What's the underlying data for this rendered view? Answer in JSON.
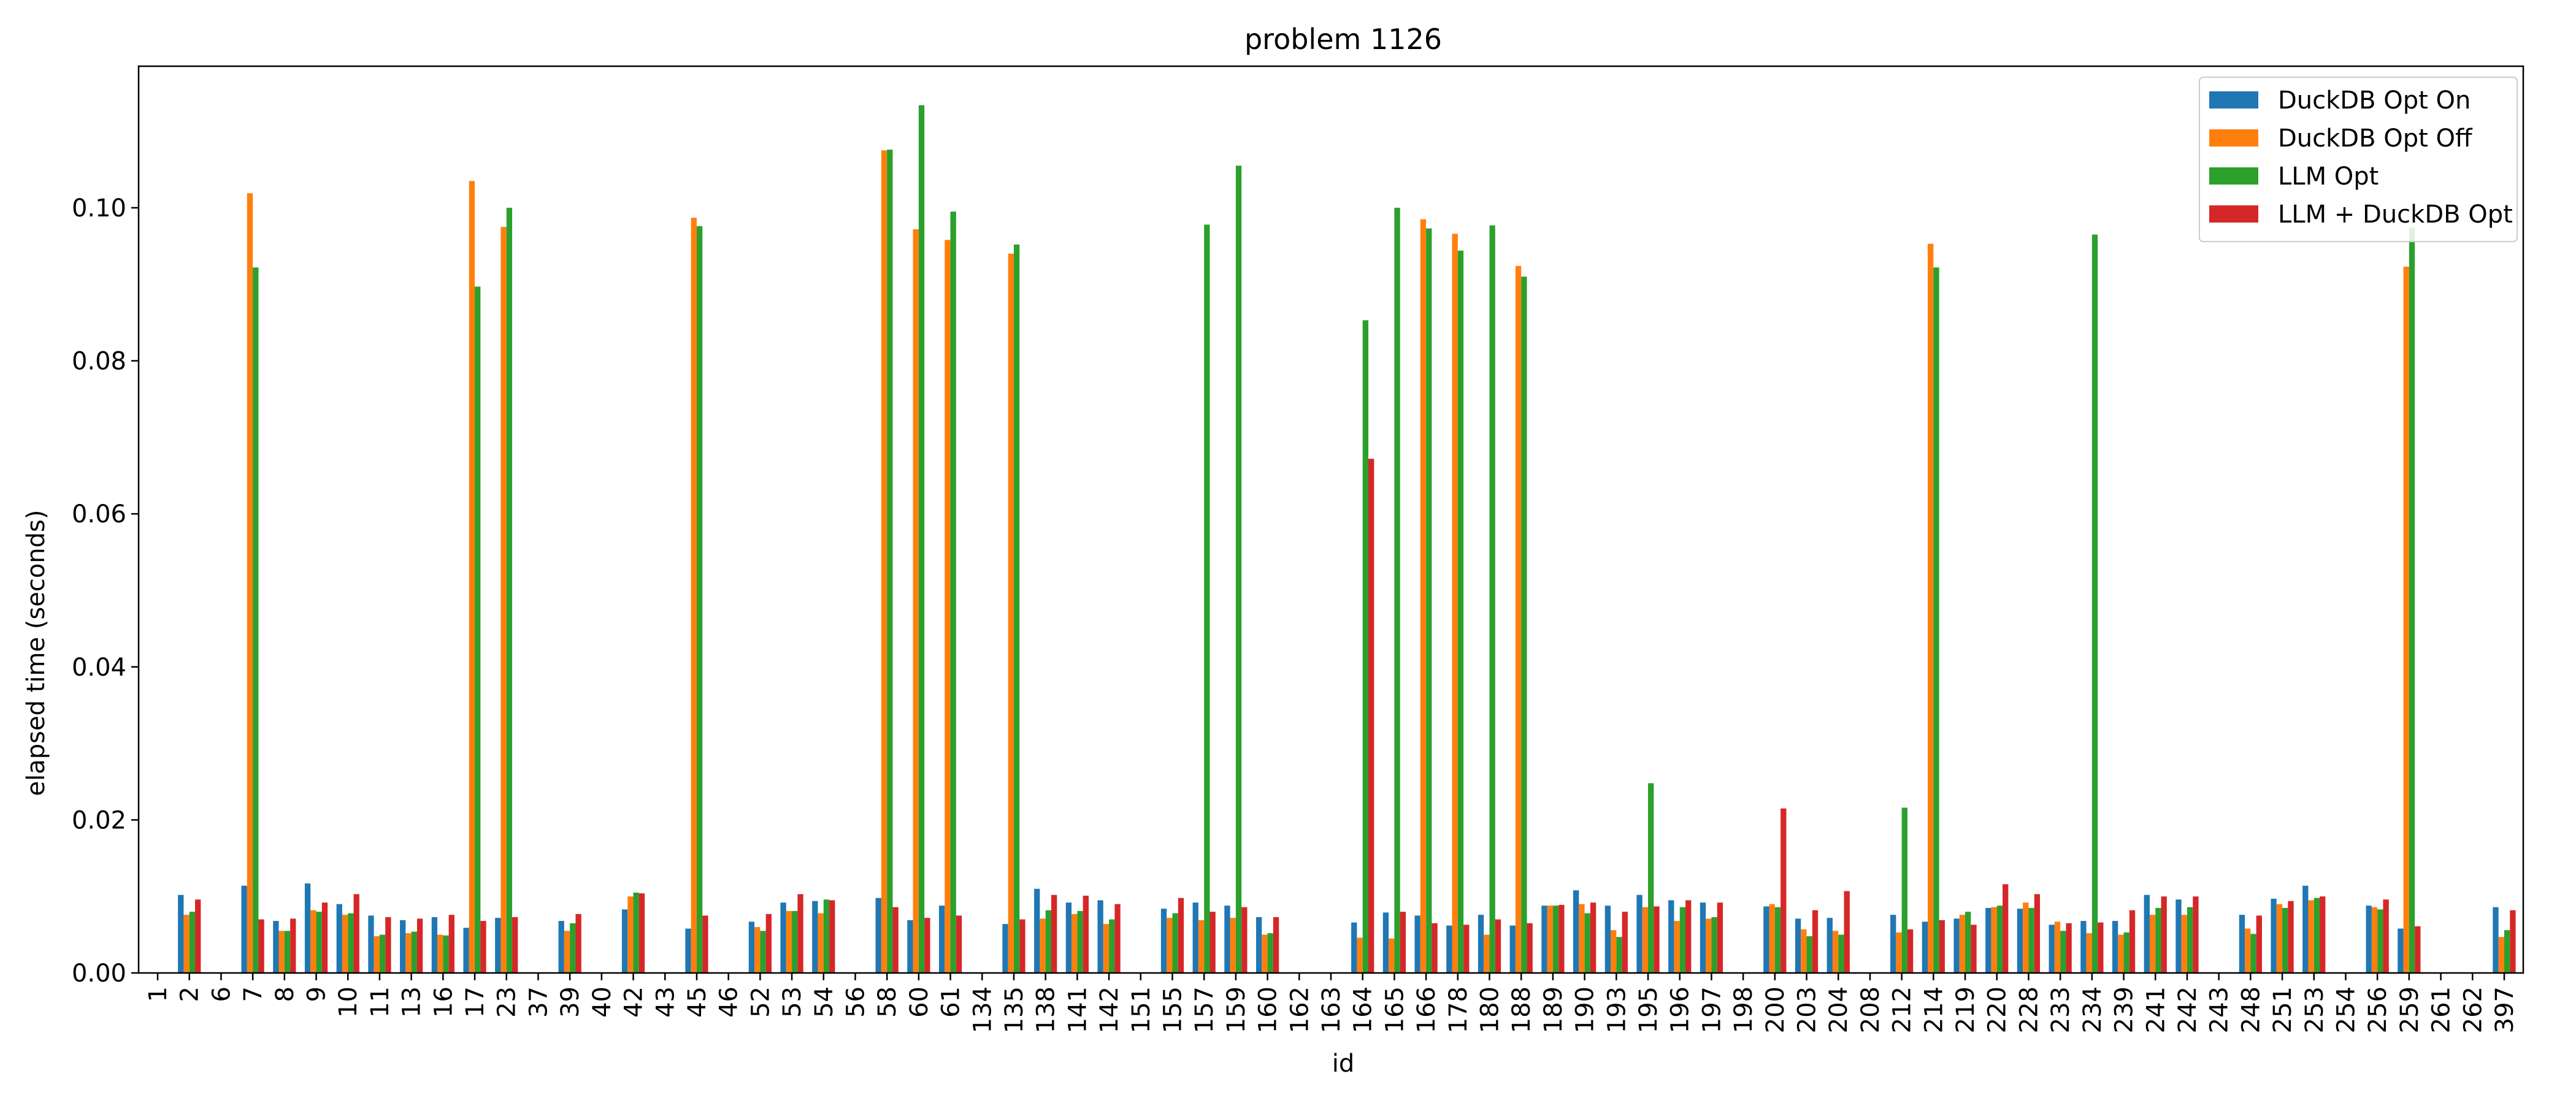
{
  "chart_data": {
    "type": "bar",
    "title": "problem 1126",
    "xlabel": "id",
    "ylabel": "elapsed time (seconds)",
    "ylim": [
      0,
      0.1185
    ],
    "yticks": [
      "0.00",
      "0.02",
      "0.04",
      "0.06",
      "0.08",
      "0.10"
    ],
    "grid": false,
    "legend_position": "top-right",
    "colors": {
      "series": [
        "#1f77b4",
        "#ff7f0e",
        "#2ca02c",
        "#d62728"
      ]
    },
    "categories": [
      "1",
      "2",
      "6",
      "7",
      "8",
      "9",
      "10",
      "11",
      "13",
      "16",
      "17",
      "23",
      "37",
      "39",
      "40",
      "42",
      "43",
      "45",
      "46",
      "52",
      "53",
      "54",
      "56",
      "58",
      "60",
      "61",
      "134",
      "135",
      "138",
      "141",
      "142",
      "151",
      "155",
      "157",
      "159",
      "160",
      "162",
      "163",
      "164",
      "165",
      "166",
      "178",
      "180",
      "188",
      "189",
      "190",
      "193",
      "195",
      "196",
      "197",
      "198",
      "200",
      "203",
      "204",
      "208",
      "212",
      "214",
      "219",
      "220",
      "228",
      "233",
      "234",
      "239",
      "241",
      "242",
      "243",
      "248",
      "251",
      "253",
      "254",
      "256",
      "259",
      "261",
      "262",
      "397"
    ],
    "series": [
      {
        "name": "DuckDB Opt On",
        "values": [
          0,
          0.0102,
          0,
          0.0114,
          0.0068,
          0.0117,
          0.009,
          0.0075,
          0.0069,
          0.0073,
          0.0059,
          0.0072,
          0,
          0.0068,
          0,
          0.0083,
          0,
          0.0058,
          0,
          0.0067,
          0.0092,
          0.0094,
          0,
          0.0098,
          0.0069,
          0.0088,
          0,
          0.0064,
          0.011,
          0.0092,
          0.0095,
          0,
          0.0084,
          0.0092,
          0.0088,
          0.0073,
          0,
          0,
          0.0066,
          0.0079,
          0.0075,
          0.0062,
          0.0076,
          0.0062,
          0.0088,
          0.0108,
          0.0088,
          0.0102,
          0.0095,
          0.0092,
          0,
          0.0087,
          0.0071,
          0.0072,
          0,
          0.0076,
          0.0067,
          0.0071,
          0.0085,
          0.0084,
          0.0063,
          0.0068,
          0.0068,
          0.0102,
          0.0096,
          0,
          0.0076,
          0.0097,
          0.0114,
          0,
          0.0088,
          0.0058,
          0,
          0,
          0.0086
        ]
      },
      {
        "name": "DuckDB Opt Off",
        "values": [
          0,
          0.0076,
          0,
          0.1019,
          0.0055,
          0.0082,
          0.0076,
          0.0048,
          0.0052,
          0.005,
          0.1035,
          0.0975,
          0,
          0.0055,
          0,
          0.01,
          0,
          0.0987,
          0,
          0.006,
          0.0081,
          0.0078,
          0,
          0.1075,
          0.0972,
          0.0958,
          0,
          0.094,
          0.0071,
          0.0077,
          0.0064,
          0,
          0.0072,
          0.0069,
          0.0072,
          0.005,
          0,
          0,
          0.0046,
          0.0045,
          0.0985,
          0.0966,
          0.005,
          0.0924,
          0.0088,
          0.009,
          0.0056,
          0.0086,
          0.0068,
          0.0071,
          0,
          0.009,
          0.0057,
          0.0055,
          0,
          0.0053,
          0.0953,
          0.0076,
          0.0086,
          0.0092,
          0.0067,
          0.0052,
          0.005,
          0.0076,
          0.0076,
          0,
          0.0058,
          0.009,
          0.0095,
          0,
          0.0086,
          0.0923,
          0,
          0,
          0.0047
        ]
      },
      {
        "name": "LLM Opt",
        "values": [
          0,
          0.008,
          0,
          0.0922,
          0.0055,
          0.008,
          0.0078,
          0.005,
          0.0054,
          0.0049,
          0.0897,
          0.1,
          0,
          0.0065,
          0,
          0.0105,
          0,
          0.0976,
          0,
          0.0055,
          0.0081,
          0.0096,
          0,
          0.1076,
          0.1134,
          0.0995,
          0,
          0.0952,
          0.0082,
          0.0081,
          0.007,
          0,
          0.0078,
          0.0978,
          0.1055,
          0.0052,
          0,
          0,
          0.0853,
          0.1,
          0.0973,
          0.0944,
          0.0977,
          0.091,
          0.0088,
          0.0078,
          0.0047,
          0.0248,
          0.0086,
          0.0073,
          0,
          0.0086,
          0.0048,
          0.005,
          0,
          0.0216,
          0.0922,
          0.008,
          0.0088,
          0.0085,
          0.0055,
          0.0965,
          0.0053,
          0.0085,
          0.0086,
          0,
          0.0051,
          0.0085,
          0.0098,
          0,
          0.0083,
          0.0974,
          0,
          0,
          0.0056
        ]
      },
      {
        "name": "LLM + DuckDB Opt",
        "values": [
          0,
          0.0096,
          0,
          0.007,
          0.0071,
          0.0092,
          0.0103,
          0.0073,
          0.0071,
          0.0076,
          0.0068,
          0.0073,
          0,
          0.0077,
          0,
          0.0104,
          0,
          0.0075,
          0,
          0.0077,
          0.0103,
          0.0095,
          0,
          0.0086,
          0.0072,
          0.0075,
          0,
          0.007,
          0.0102,
          0.0101,
          0.009,
          0,
          0.0098,
          0.008,
          0.0086,
          0.0073,
          0,
          0,
          0.0672,
          0.008,
          0.0065,
          0.0063,
          0.007,
          0.0065,
          0.0089,
          0.0092,
          0.008,
          0.0087,
          0.0095,
          0.0092,
          0,
          0.0215,
          0.0082,
          0.0107,
          0,
          0.0057,
          0.0069,
          0.0063,
          0.0116,
          0.0103,
          0.0065,
          0.0066,
          0.0082,
          0.01,
          0.01,
          0,
          0.0075,
          0.0094,
          0.01,
          0,
          0.0096,
          0.0061,
          0,
          0,
          0.0082
        ]
      }
    ]
  }
}
